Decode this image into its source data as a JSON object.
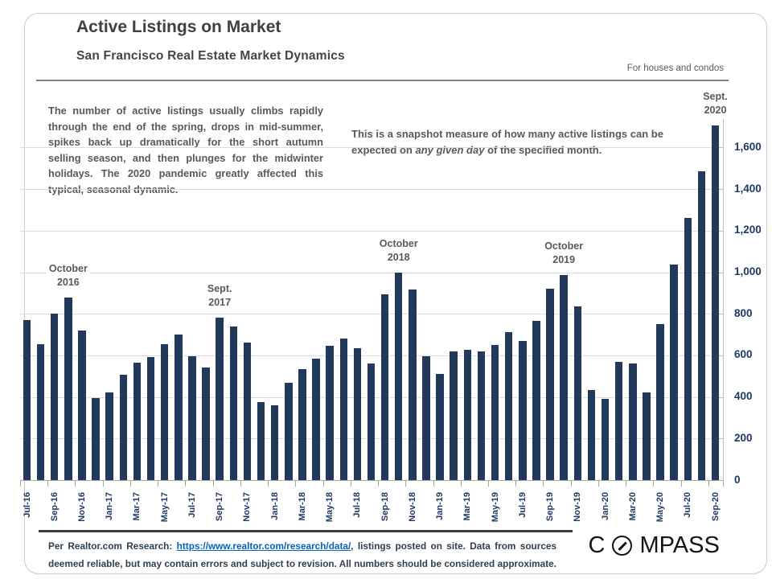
{
  "header": {
    "title": "Active Listings on Market",
    "subtitle": "San Francisco Real Estate Market Dynamics",
    "note": "For houses and condos"
  },
  "commentary": {
    "left": "The number of active listings usually climbs rapidly through the end of the spring, drops in mid-summer, spikes back up dramatically for the short autumn selling season, and then plunges for the midwinter holidays. The 2020 pandemic greatly affected this typical, seasonal dynamic.",
    "right_before": "This is a snapshot measure of how many active listings can be expected on ",
    "right_italic": "any given day",
    "right_after": " of the specified month."
  },
  "chart_data": {
    "type": "bar",
    "title": "Active Listings on Market",
    "xlabel": "",
    "ylabel": "",
    "ylim": [
      0,
      1700
    ],
    "y_ticks": [
      0,
      200,
      400,
      600,
      800,
      1000,
      1200,
      1400,
      1600
    ],
    "grid": true,
    "axis_side": "right",
    "bar_color": "#21395A",
    "x_label_every": 2,
    "categories": [
      "Jul-16",
      "Aug-16",
      "Sep-16",
      "Oct-16",
      "Nov-16",
      "Dec-16",
      "Jan-17",
      "Feb-17",
      "Mar-17",
      "Apr-17",
      "May-17",
      "Jun-17",
      "Jul-17",
      "Aug-17",
      "Sep-17",
      "Oct-17",
      "Nov-17",
      "Dec-17",
      "Jan-18",
      "Feb-18",
      "Mar-18",
      "Apr-18",
      "May-18",
      "Jun-18",
      "Jul-18",
      "Aug-18",
      "Sep-18",
      "Oct-18",
      "Nov-18",
      "Dec-18",
      "Jan-19",
      "Feb-19",
      "Mar-19",
      "Apr-19",
      "May-19",
      "Jun-19",
      "Jul-19",
      "Aug-19",
      "Sep-19",
      "Oct-19",
      "Nov-19",
      "Dec-19",
      "Jan-20",
      "Feb-20",
      "Mar-20",
      "Apr-20",
      "May-20",
      "Jun-20",
      "Jul-20",
      "Aug-20",
      "Sep-20"
    ],
    "values": [
      770,
      655,
      800,
      880,
      720,
      395,
      420,
      505,
      565,
      590,
      655,
      700,
      595,
      540,
      780,
      740,
      660,
      375,
      360,
      470,
      535,
      585,
      645,
      680,
      635,
      560,
      895,
      1000,
      915,
      595,
      510,
      620,
      625,
      620,
      650,
      710,
      670,
      765,
      920,
      985,
      835,
      435,
      390,
      570,
      560,
      420,
      750,
      1035,
      1260,
      1485,
      1705
    ],
    "annotations": [
      {
        "month": "Oct-16",
        "lines": [
          "October",
          "2016"
        ]
      },
      {
        "month": "Sep-17",
        "lines": [
          "Sept.",
          "2017"
        ]
      },
      {
        "month": "Oct-18",
        "lines": [
          "October",
          "2018"
        ]
      },
      {
        "month": "Oct-19",
        "lines": [
          "October",
          "2019"
        ]
      },
      {
        "month": "Sep-20",
        "lines": [
          "Sept.",
          "2020"
        ]
      }
    ]
  },
  "footer": {
    "line1_prefix": "Per Realtor.com  Research:  ",
    "link_text": "https://www.realtor.com/research/data/",
    "line1_suffix": ", listings  posted on site. Data from sources deemed reliable, but may contain errors and subject to revision.  All numbers should  be considered approximate.",
    "logo_letters_pre": "C",
    "logo_letters_post": "MPASS"
  }
}
